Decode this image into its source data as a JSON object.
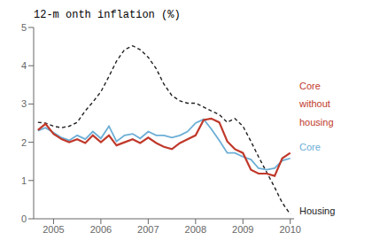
{
  "chart_data": {
    "type": "line",
    "title": "12-m onth inflation (%)",
    "x": [
      2004.67,
      2004.83,
      2005.0,
      2005.17,
      2005.33,
      2005.5,
      2005.67,
      2005.83,
      2006.0,
      2006.17,
      2006.33,
      2006.5,
      2006.67,
      2006.83,
      2007.0,
      2007.17,
      2007.33,
      2007.5,
      2007.67,
      2007.83,
      2008.0,
      2008.17,
      2008.33,
      2008.5,
      2008.67,
      2008.83,
      2009.0,
      2009.17,
      2009.33,
      2009.5,
      2009.67,
      2009.83,
      2010.0
    ],
    "series": [
      {
        "color": "#222222",
        "line_style": "dashed",
        "values": [
          2.52,
          2.5,
          2.42,
          2.38,
          2.42,
          2.52,
          2.82,
          3.05,
          3.32,
          3.72,
          4.12,
          4.42,
          4.52,
          4.42,
          4.22,
          3.92,
          3.52,
          3.22,
          3.08,
          3.02,
          3.02,
          2.92,
          2.82,
          2.72,
          2.52,
          2.62,
          2.42,
          2.02,
          1.62,
          1.22,
          0.82,
          0.42,
          0.12
        ]
      },
      {
        "color": "#6baed6",
        "line_style": "solid",
        "values": [
          2.3,
          2.38,
          2.25,
          2.12,
          2.05,
          2.18,
          2.08,
          2.28,
          2.1,
          2.42,
          2.02,
          2.18,
          2.22,
          2.1,
          2.28,
          2.18,
          2.18,
          2.12,
          2.18,
          2.28,
          2.5,
          2.6,
          2.35,
          2.05,
          1.72,
          1.72,
          1.62,
          1.55,
          1.32,
          1.28,
          1.32,
          1.52,
          1.58
        ]
      },
      {
        "color": "#c0392b",
        "line_style": "solid",
        "values": [
          2.32,
          2.48,
          2.22,
          2.08,
          2.0,
          2.08,
          1.98,
          2.18,
          2.0,
          2.18,
          1.92,
          2.0,
          2.08,
          1.98,
          2.12,
          1.98,
          1.88,
          1.82,
          1.98,
          2.08,
          2.18,
          2.58,
          2.62,
          2.52,
          2.02,
          1.82,
          1.72,
          1.28,
          1.18,
          1.18,
          1.12,
          1.58,
          1.72
        ]
      }
    ],
    "annotations": [
      {
        "text": "Core",
        "color": "#c0392b"
      },
      {
        "text": "without",
        "color": "#c0392b"
      },
      {
        "text": "housing",
        "color": "#c0392b"
      },
      {
        "text": "Core",
        "color": "#6baed6"
      },
      {
        "text": "Housing",
        "color": "#222222"
      }
    ],
    "xlim": [
      2004.58,
      2010.08
    ],
    "xticks": [
      2005,
      2006,
      2007,
      2008,
      2009,
      2010
    ],
    "ylim": [
      0,
      5
    ],
    "yticks": [
      0,
      1,
      2,
      3,
      4,
      5
    ],
    "grid": false
  }
}
